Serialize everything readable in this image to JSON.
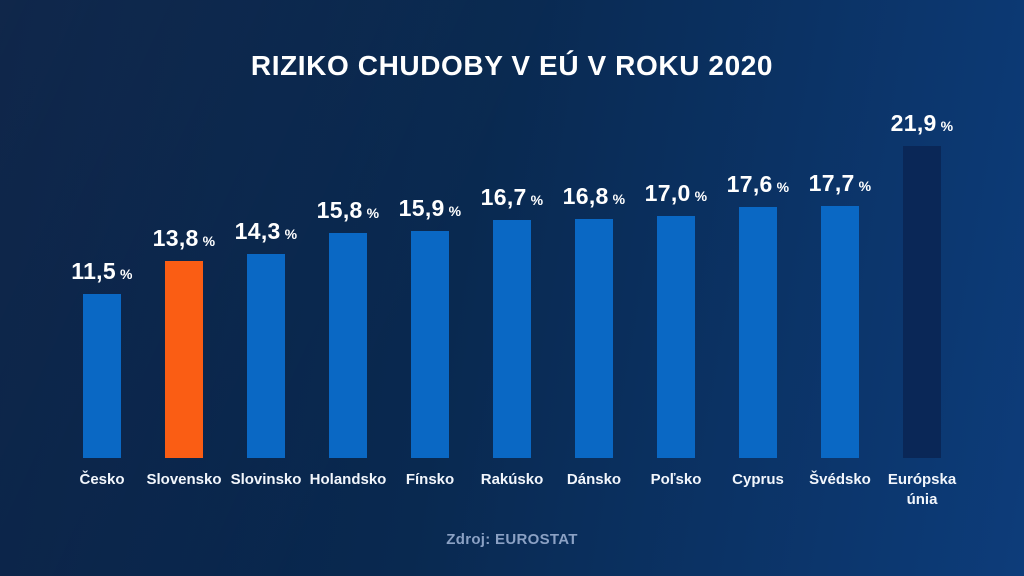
{
  "title": "RIZIKO CHUDOBY V EÚ V ROKU 2020",
  "source": "Zdroj: EUROSTAT",
  "chart_data": {
    "type": "bar",
    "title": "RIZIKO CHUDOBY V EÚ V ROKU 2020",
    "categories": [
      "Česko",
      "Slovensko",
      "Slovinsko",
      "Holandsko",
      "Fínsko",
      "Rakúsko",
      "Dánsko",
      "Poľsko",
      "Cyprus",
      "Švédsko",
      "Európska únia"
    ],
    "values": [
      11.5,
      13.8,
      14.3,
      15.8,
      15.9,
      16.7,
      16.8,
      17.0,
      17.6,
      17.7,
      21.9
    ],
    "value_labels": [
      "11,5",
      "13,8",
      "14,3",
      "15,8",
      "15,9",
      "16,7",
      "16,8",
      "17,0",
      "17,6",
      "17,7",
      "21,9"
    ],
    "unit": "%",
    "highlight_index": 1,
    "eu_index": 10,
    "colors": {
      "bar": "#0a68c4",
      "highlight_bar": "#fa5d14",
      "eu_bar": "#0a2757",
      "value_text": "#ffffff",
      "category_text": "#f2f6fc",
      "source_text": "#8ba1c4",
      "background_start": "#071f44",
      "background_end": "#0d3c7a"
    },
    "xlabel": "",
    "ylabel": "",
    "ylim": [
      0,
      24
    ],
    "grid": false,
    "legend": false,
    "source": "Zdroj: EUROSTAT"
  }
}
